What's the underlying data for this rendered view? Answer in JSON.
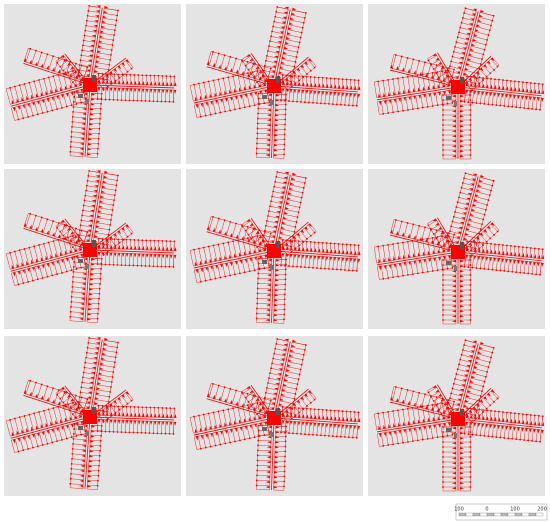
{
  "scale_bar": {
    "labels": [
      "100",
      "0",
      "100",
      "200"
    ]
  }
}
